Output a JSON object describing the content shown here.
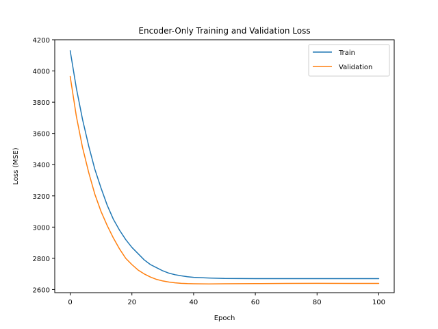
{
  "chart_data": {
    "type": "line",
    "title": "Encoder-Only Training and Validation Loss",
    "xlabel": "Epoch",
    "ylabel": "Loss (MSE)",
    "xlim": [
      -5,
      105
    ],
    "ylim": [
      2580,
      4200
    ],
    "xticks": [
      0,
      20,
      40,
      60,
      80,
      100
    ],
    "yticks": [
      2600,
      2800,
      3000,
      3200,
      3400,
      3600,
      3800,
      4000,
      4200
    ],
    "grid": false,
    "legend_position": "top-right",
    "series": [
      {
        "name": "Train",
        "color": "#1f77b4",
        "x": [
          0,
          2,
          4,
          6,
          8,
          10,
          12,
          14,
          16,
          18,
          20,
          22,
          24,
          26,
          28,
          30,
          32,
          34,
          36,
          38,
          40,
          45,
          50,
          60,
          70,
          80,
          90,
          100
        ],
        "y": [
          4130,
          3890,
          3690,
          3520,
          3370,
          3250,
          3140,
          3050,
          2980,
          2920,
          2870,
          2830,
          2790,
          2760,
          2740,
          2720,
          2705,
          2695,
          2688,
          2682,
          2678,
          2674,
          2671,
          2670,
          2670,
          2670,
          2670,
          2670
        ]
      },
      {
        "name": "Validation",
        "color": "#ff7f0e",
        "x": [
          0,
          2,
          4,
          6,
          8,
          10,
          12,
          14,
          16,
          18,
          20,
          22,
          24,
          26,
          28,
          30,
          32,
          34,
          36,
          38,
          40,
          45,
          50,
          60,
          70,
          80,
          90,
          100
        ],
        "y": [
          3965,
          3710,
          3510,
          3350,
          3210,
          3100,
          3010,
          2930,
          2860,
          2800,
          2760,
          2725,
          2700,
          2680,
          2665,
          2655,
          2648,
          2643,
          2640,
          2638,
          2637,
          2636,
          2637,
          2638,
          2639,
          2640,
          2639,
          2639
        ]
      }
    ]
  }
}
